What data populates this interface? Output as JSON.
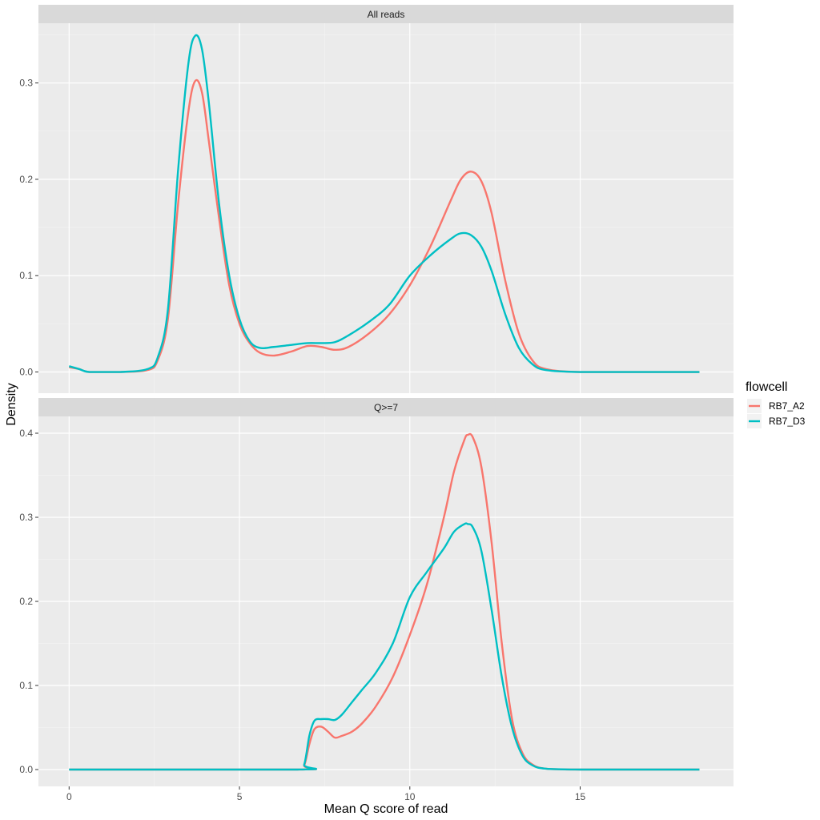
{
  "chart_data": {
    "type": "line",
    "xlabel": "Mean Q score of read",
    "ylabel": "Density",
    "xlim": [
      -0.9,
      19.5
    ],
    "x_ticks": [
      0,
      5,
      10,
      15
    ],
    "legend": {
      "title": "flowcell",
      "position": "right"
    },
    "series_colors": {
      "RB7_A2": "#F8766D",
      "RB7_D3": "#00BFC4"
    },
    "panels": [
      {
        "strip": "All reads",
        "ylim": [
          -0.022,
          0.362
        ],
        "y_ticks": [
          0.0,
          0.1,
          0.2,
          0.3
        ],
        "series": [
          {
            "name": "RB7_A2",
            "x": [
              0,
              0.3,
              0.6,
              1.5,
              2.3,
              2.6,
              2.9,
              3.2,
              3.5,
              3.7,
              3.9,
              4.1,
              4.4,
              4.7,
              5.0,
              5.3,
              5.6,
              6.0,
              6.5,
              7.0,
              7.4,
              7.8,
              8.2,
              8.8,
              9.4,
              10.0,
              10.6,
              11.2,
              11.5,
              11.8,
              12.1,
              12.4,
              12.8,
              13.2,
              13.6,
              14.0,
              15,
              17,
              18.5
            ],
            "values": [
              0.005,
              0.003,
              0.0,
              0.0,
              0.002,
              0.012,
              0.055,
              0.175,
              0.27,
              0.302,
              0.29,
              0.24,
              0.16,
              0.09,
              0.05,
              0.03,
              0.02,
              0.017,
              0.021,
              0.027,
              0.026,
              0.023,
              0.026,
              0.04,
              0.06,
              0.09,
              0.13,
              0.178,
              0.2,
              0.208,
              0.198,
              0.165,
              0.095,
              0.04,
              0.012,
              0.003,
              0.0,
              0.0,
              0.0
            ]
          },
          {
            "name": "RB7_D3",
            "x": [
              0,
              0.3,
              0.6,
              1.5,
              2.3,
              2.6,
              2.9,
              3.2,
              3.5,
              3.7,
              3.9,
              4.1,
              4.4,
              4.7,
              5.0,
              5.3,
              5.6,
              6.0,
              6.5,
              7.0,
              7.4,
              7.8,
              8.2,
              8.8,
              9.4,
              10.0,
              10.6,
              11.2,
              11.5,
              11.8,
              12.1,
              12.4,
              12.8,
              13.2,
              13.6,
              14.0,
              15,
              17,
              18.5
            ],
            "values": [
              0.006,
              0.003,
              0.0,
              0.0,
              0.003,
              0.015,
              0.065,
              0.21,
              0.32,
              0.349,
              0.335,
              0.28,
              0.175,
              0.1,
              0.055,
              0.032,
              0.025,
              0.026,
              0.028,
              0.03,
              0.03,
              0.031,
              0.038,
              0.052,
              0.07,
              0.1,
              0.121,
              0.138,
              0.144,
              0.142,
              0.13,
              0.105,
              0.06,
              0.025,
              0.008,
              0.002,
              0.0,
              0.0,
              0.0
            ]
          }
        ]
      },
      {
        "strip": "Q>=7",
        "ylim": [
          -0.02,
          0.42
        ],
        "y_ticks": [
          0.0,
          0.1,
          0.2,
          0.3,
          0.4
        ],
        "series": [
          {
            "name": "RB7_A2",
            "x": [
              0,
              6.7,
              6.9,
              7.05,
              7.2,
              7.4,
              7.6,
              7.8,
              8.0,
              8.3,
              8.6,
              9.0,
              9.5,
              10.0,
              10.5,
              11.0,
              11.3,
              11.6,
              11.7,
              11.85,
              12.1,
              12.4,
              12.7,
              13.0,
              13.3,
              13.6,
              14.0,
              15,
              17,
              18.5
            ],
            "values": [
              0.0,
              0.0,
              0.005,
              0.03,
              0.048,
              0.051,
              0.045,
              0.038,
              0.04,
              0.045,
              0.055,
              0.075,
              0.11,
              0.16,
              0.22,
              0.3,
              0.355,
              0.392,
              0.398,
              0.395,
              0.36,
              0.27,
              0.15,
              0.06,
              0.02,
              0.006,
              0.001,
              0.0,
              0.0,
              0.0
            ]
          },
          {
            "name": "RB7_D3",
            "x": [
              0,
              6.7,
              6.9,
              7.05,
              7.2,
              7.4,
              7.6,
              7.8,
              8.0,
              8.3,
              8.6,
              9.0,
              9.5,
              10.0,
              10.5,
              11.0,
              11.3,
              11.6,
              11.7,
              11.85,
              12.1,
              12.4,
              12.7,
              13.0,
              13.3,
              13.6,
              14.0,
              15,
              17,
              18.5
            ],
            "values": [
              0.0,
              0.0,
              0.006,
              0.04,
              0.058,
              0.06,
              0.06,
              0.059,
              0.065,
              0.08,
              0.095,
              0.115,
              0.15,
              0.205,
              0.235,
              0.263,
              0.283,
              0.292,
              0.292,
              0.288,
              0.26,
              0.19,
              0.11,
              0.05,
              0.017,
              0.005,
              0.001,
              0.0,
              0.0,
              0.0
            ]
          }
        ]
      }
    ]
  }
}
